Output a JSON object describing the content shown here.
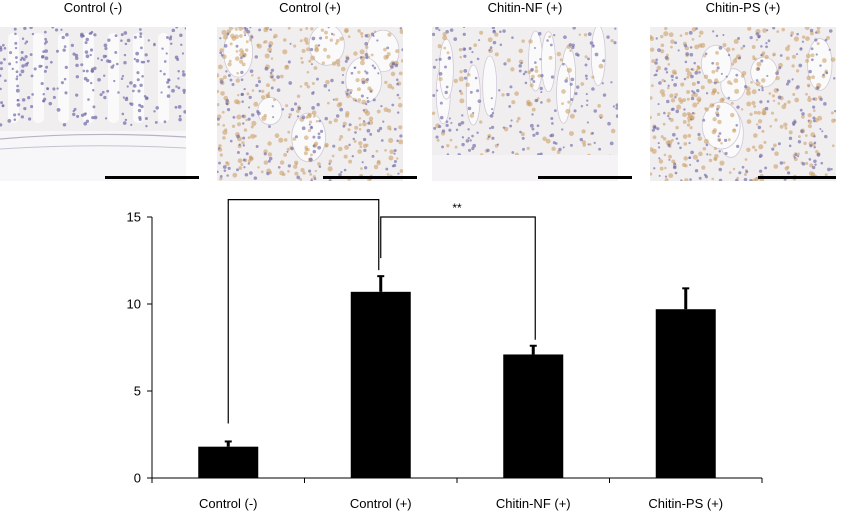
{
  "panels": [
    {
      "label": "Control (-)",
      "tissue": "normal"
    },
    {
      "label": "Control (+)",
      "tissue": "inflamed"
    },
    {
      "label": "Chitin-NF (+)",
      "tissue": "mild"
    },
    {
      "label": "Chitin-PS (+)",
      "tissue": "inflamed-dense"
    }
  ],
  "colors": {
    "tissue_bg": "#f1eef0",
    "nuclei": "#6f6aa8",
    "stain": "#c89a5e",
    "lumen": "#fbfafb",
    "bar": "#000000"
  },
  "chart_data": {
    "type": "bar",
    "categories": [
      "Control (-)",
      "Control (+)",
      "Chitin-NF (+)",
      "Chitin-PS (+)"
    ],
    "values": [
      1.8,
      10.7,
      7.1,
      9.7
    ],
    "errors": [
      0.3,
      0.9,
      0.5,
      1.2
    ],
    "ylim": [
      0,
      15
    ],
    "yticks": [
      0,
      5,
      10,
      15
    ],
    "title": "",
    "xlabel": "",
    "ylabel": "",
    "significance": [
      {
        "from": 0,
        "to": 1,
        "label": "**"
      },
      {
        "from": 1,
        "to": 2,
        "label": "**"
      }
    ]
  }
}
